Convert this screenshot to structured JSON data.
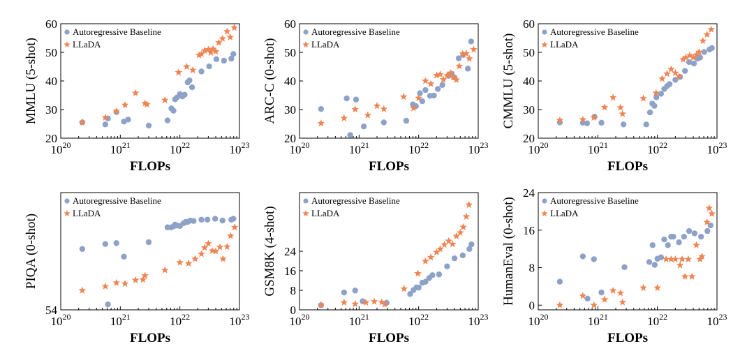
{
  "colors": {
    "baseline": "#8ea2c8",
    "llada": "#ef8552"
  },
  "chart_data": [
    {
      "type": "scatter",
      "xlabel": "FLOPs",
      "ylabel": "MMLU (5-shot)",
      "xscale": "log",
      "xlim": [
        1e+20,
        1e+23
      ],
      "ylim": [
        20,
        60
      ],
      "yticks": [
        20,
        30,
        40,
        50,
        60
      ],
      "xtick_exponents": [
        "20",
        "21",
        "22",
        "23"
      ],
      "legend": [
        "Autoregressive Baseline",
        "LLaDA"
      ],
      "series": [
        {
          "name": "Autoregressive Baseline",
          "marker": "circle",
          "x": [
            2.3e+20,
            5.6e+20,
            6.2e+20,
            8.6e+20,
            1.15e+21,
            1.35e+21,
            3e+21,
            6.2e+21,
            7.2e+21,
            7.8e+21,
            8.3e+21,
            8.9e+21,
            1e+22,
            1.1e+22,
            1.2e+22,
            1.35e+22,
            1.45e+22,
            1.6e+22,
            2.3e+22,
            3.1e+22,
            4.1e+22,
            5.5e+22,
            7.3e+22,
            7.9e+22
          ],
          "y": [
            25.5,
            24.8,
            26.9,
            29.1,
            25.8,
            26.5,
            24.4,
            26.2,
            30.4,
            29.6,
            33.6,
            34.2,
            35.4,
            34.6,
            35.2,
            39.5,
            40.2,
            37.8,
            43.3,
            45.1,
            47.6,
            47.1,
            47.8,
            49.4
          ]
        },
        {
          "name": "LLaDA",
          "marker": "star",
          "x": [
            2.3e+20,
            5.6e+20,
            8.6e+20,
            1.2e+21,
            1.8e+21,
            2.6e+21,
            2.8e+21,
            5.6e+21,
            9.5e+21,
            1.3e+22,
            1.65e+22,
            2.1e+22,
            2.3e+22,
            2.6e+22,
            3e+22,
            3.3e+22,
            3.6e+22,
            4e+22,
            4.5e+22,
            5.2e+22,
            6.2e+22,
            7e+22,
            8.2e+22
          ],
          "y": [
            25.6,
            27.2,
            29.5,
            31.6,
            35.8,
            32.2,
            31.8,
            33.3,
            43.0,
            45.0,
            43.8,
            49.0,
            49.4,
            50.6,
            51.0,
            49.9,
            51.2,
            50.3,
            53.4,
            54.8,
            57.3,
            55.3,
            58.6
          ]
        }
      ]
    },
    {
      "type": "scatter",
      "xlabel": "FLOPs",
      "ylabel": "ARC-C (0-shot)",
      "xscale": "log",
      "xlim": [
        1e+20,
        1e+23
      ],
      "ylim": [
        20,
        60
      ],
      "yticks": [
        20,
        30,
        40,
        50,
        60
      ],
      "xtick_exponents": [
        "20",
        "21",
        "22",
        "23"
      ],
      "legend": [
        "Autoregressive Baseline",
        "LLaDA"
      ],
      "series": [
        {
          "name": "Autoregressive Baseline",
          "marker": "circle",
          "x": [
            2.3e+20,
            6.2e+20,
            7.1e+20,
            8.9e+20,
            1.2e+21,
            2.6e+21,
            6.2e+21,
            8e+21,
            9e+21,
            1.05e+22,
            1.15e+22,
            1.3e+22,
            1.55e+22,
            1.8e+22,
            2.1e+22,
            2.5e+22,
            3.2e+22,
            3.6e+22,
            4e+22,
            4.7e+22,
            5.6e+22,
            6.7e+22,
            7.6e+22
          ],
          "y": [
            30.2,
            33.9,
            21.1,
            33.5,
            24.1,
            25.5,
            26.1,
            31.8,
            31.2,
            35.7,
            32.9,
            36.8,
            34.8,
            34.9,
            37.2,
            38.6,
            41.8,
            42.5,
            41.2,
            47.9,
            49.1,
            44.3,
            53.8
          ]
        },
        {
          "name": "LLaDA",
          "marker": "star",
          "x": [
            2.3e+20,
            5.6e+20,
            8.6e+20,
            1.4e+21,
            2e+21,
            2.6e+21,
            5.6e+21,
            8.2e+21,
            1e+22,
            1.3e+22,
            1.6e+22,
            2e+22,
            2.3e+22,
            2.6e+22,
            3e+22,
            3.4e+22,
            3.8e+22,
            4.3e+22,
            4.8e+22,
            5.5e+22,
            6.3e+22,
            7.1e+22,
            8.4e+22
          ],
          "y": [
            25.2,
            27.0,
            30.1,
            28.0,
            31.3,
            30.2,
            34.5,
            30.5,
            34.0,
            40.0,
            39.0,
            42.0,
            42.3,
            40.5,
            41.9,
            42.8,
            41.3,
            40.4,
            45.2,
            49.5,
            49.6,
            47.8,
            51.0
          ]
        }
      ]
    },
    {
      "type": "scatter",
      "xlabel": "FLOPs",
      "ylabel": "CMMLU (5-shot)",
      "xscale": "log",
      "xlim": [
        1e+20,
        1e+23
      ],
      "ylim": [
        20,
        60
      ],
      "yticks": [
        20,
        30,
        40,
        50,
        60
      ],
      "xtick_exponents": [
        "20",
        "21",
        "22",
        "23"
      ],
      "legend": [
        "Autoregressive Baseline",
        "LLaDA"
      ],
      "series": [
        {
          "name": "Autoregressive Baseline",
          "marker": "circle",
          "x": [
            2.3e+20,
            5.6e+20,
            6.6e+20,
            8.8e+20,
            1.15e+21,
            2.7e+21,
            6.5e+21,
            7.5e+21,
            8.2e+21,
            8.9e+21,
            9.6e+21,
            1.15e+22,
            1.3e+22,
            1.45e+22,
            1.6e+22,
            2e+22,
            2.4e+22,
            2.9e+22,
            3.4e+22,
            4.1e+22,
            4.7e+22,
            5.2e+22,
            6.1e+22,
            7.5e+22,
            8.2e+22
          ],
          "y": [
            25.5,
            25.4,
            25.2,
            27.5,
            25.4,
            24.8,
            24.8,
            29.0,
            32.1,
            31.3,
            34.3,
            35.5,
            37.2,
            38.2,
            38.9,
            40.4,
            41.4,
            43.5,
            46.6,
            46.1,
            47.8,
            48.2,
            50.1,
            51.0,
            51.5
          ]
        },
        {
          "name": "LLaDA",
          "marker": "star",
          "x": [
            2.3e+20,
            5.6e+20,
            8.6e+20,
            1.3e+21,
            1.8e+21,
            2.4e+21,
            2.6e+21,
            5.8e+21,
            9.5e+21,
            1.2e+22,
            1.45e+22,
            1.7e+22,
            2e+22,
            2.3e+22,
            2.7e+22,
            3e+22,
            3.5e+22,
            4e+22,
            4.5e+22,
            5e+22,
            5.8e+22,
            6.8e+22,
            8e+22
          ],
          "y": [
            26.3,
            26.5,
            27.2,
            30.8,
            34.2,
            30.7,
            28.5,
            33.9,
            35.8,
            40.8,
            42.5,
            44.1,
            42.8,
            41.6,
            47.5,
            48.2,
            48.9,
            48.2,
            49.1,
            50.1,
            54.0,
            56.2,
            58.0
          ]
        }
      ]
    },
    {
      "type": "scatter",
      "xlabel": "FLOPs",
      "ylabel": "PIQA (0-shot)",
      "xscale": "log",
      "xlim": [
        1e+20,
        1e+23
      ],
      "ylim": [
        54,
        80
      ],
      "yticks": [
        54
      ],
      "xtick_exponents": [
        "20",
        "21",
        "22",
        "23"
      ],
      "legend": [
        "Autoregressive Baseline",
        "LLaDA"
      ],
      "series": [
        {
          "name": "Autoregressive Baseline",
          "marker": "circle",
          "x": [
            2.3e+20,
            5.6e+20,
            6.2e+20,
            8.6e+20,
            1.15e+21,
            3e+21,
            6.2e+21,
            7.2e+21,
            7.8e+21,
            8.3e+21,
            8.9e+21,
            1e+22,
            1.15e+22,
            1.25e+22,
            1.35e+22,
            1.5e+22,
            1.7e+22,
            2.3e+22,
            2.9e+22,
            3.9e+22,
            5.2e+22,
            7.3e+22,
            7.9e+22
          ],
          "y": [
            67.5,
            68.6,
            55.2,
            68.8,
            65.8,
            69.0,
            72.3,
            72.3,
            72.5,
            72.9,
            72.7,
            72.6,
            73.2,
            73.5,
            73.5,
            73.8,
            73.7,
            74.0,
            74.0,
            74.2,
            73.8,
            74.0,
            74.2
          ]
        },
        {
          "name": "LLaDA",
          "marker": "star",
          "x": [
            2.3e+20,
            5.6e+20,
            8.6e+20,
            1.2e+21,
            1.8e+21,
            2.4e+21,
            2.6e+21,
            5.6e+21,
            1e+22,
            1.4e+22,
            1.8e+22,
            2.3e+22,
            2.6e+22,
            3e+22,
            3.5e+22,
            4e+22,
            4.7e+22,
            5.3e+22,
            6.2e+22,
            7.1e+22,
            8.3e+22
          ],
          "y": [
            58.3,
            59.2,
            60.0,
            59.8,
            60.6,
            60.7,
            61.6,
            62.8,
            64.5,
            64.3,
            65.3,
            66.4,
            67.8,
            68.7,
            67.1,
            67.0,
            67.9,
            65.3,
            68.0,
            70.4,
            72.3
          ]
        }
      ]
    },
    {
      "type": "scatter",
      "xlabel": "FLOPs",
      "ylabel": "GSM8K (4-shot)",
      "xscale": "log",
      "xlim": [
        1e+20,
        1e+23
      ],
      "ylim": [
        0,
        48
      ],
      "yticks": [
        0,
        8,
        16,
        24
      ],
      "xtick_exponents": [
        "20",
        "21",
        "22",
        "23"
      ],
      "legend": [
        "Autoregressive Baseline",
        "LLaDA"
      ],
      "series": [
        {
          "name": "Autoregressive Baseline",
          "marker": "circle",
          "x": [
            2.3e+20,
            5.6e+20,
            8.6e+20,
            1.15e+21,
            2.9e+21,
            7.2e+21,
            8.2e+21,
            9.2e+21,
            1e+22,
            1.15e+22,
            1.3e+22,
            1.5e+22,
            1.7e+22,
            2.2e+22,
            3e+22,
            4e+22,
            5.5e+22,
            7.1e+22,
            7.7e+22
          ],
          "y": [
            1.9,
            7.1,
            7.9,
            3.5,
            2.9,
            6.5,
            8.1,
            9.2,
            9.1,
            11.1,
            11.5,
            13.0,
            14.2,
            14.5,
            17.8,
            21.1,
            22.3,
            24.9,
            26.8
          ]
        },
        {
          "name": "LLaDA",
          "marker": "star",
          "x": [
            2.3e+20,
            5.6e+20,
            8.6e+20,
            1.3e+21,
            1.8e+21,
            2.4e+21,
            2.7e+21,
            5.7e+21,
            9.7e+21,
            1.3e+22,
            1.6e+22,
            2e+22,
            2.3e+22,
            2.7e+22,
            3.2e+22,
            3.7e+22,
            4.3e+22,
            5e+22,
            5.6e+22,
            6.3e+22,
            7e+22
          ],
          "y": [
            2.0,
            3.0,
            2.4,
            3.0,
            3.4,
            3.1,
            2.3,
            8.6,
            14.9,
            19.9,
            21.5,
            23.6,
            24.9,
            26.7,
            28.2,
            26.9,
            30.2,
            31.6,
            33.9,
            38.2,
            43.0
          ]
        }
      ]
    },
    {
      "type": "scatter",
      "xlabel": "FLOPs",
      "ylabel": "HumanEval (0-shot)",
      "xscale": "log",
      "xlim": [
        1e+20,
        1e+23
      ],
      "ylim": [
        -1,
        24
      ],
      "yticks": [
        0,
        8,
        16,
        24
      ],
      "xtick_exponents": [
        "20",
        "21",
        "22",
        "23"
      ],
      "legend": [
        "Autoregressive Baseline",
        "LLaDA"
      ],
      "series": [
        {
          "name": "Autoregressive Baseline",
          "marker": "circle",
          "x": [
            2.3e+20,
            5.6e+20,
            6.7e+20,
            8.6e+20,
            1.15e+21,
            2.8e+21,
            7.3e+21,
            8.3e+21,
            9e+21,
            1e+22,
            1.15e+22,
            1.3e+22,
            1.5e+22,
            1.7e+22,
            1.85e+22,
            2.3e+22,
            2.8e+22,
            3.4e+22,
            4.2e+22,
            5.4e+22,
            6.9e+22,
            7.8e+22
          ],
          "y": [
            5.0,
            10.4,
            1.4,
            9.8,
            2.7,
            8.1,
            9.2,
            12.8,
            8.6,
            9.9,
            10.2,
            14.0,
            12.8,
            14.6,
            14.6,
            13.4,
            14.6,
            15.8,
            15.3,
            14.6,
            15.8,
            17.0
          ]
        },
        {
          "name": "LLaDA",
          "marker": "star",
          "x": [
            2.3e+20,
            5.6e+20,
            8.6e+20,
            1.3e+21,
            1.8e+21,
            2.4e+21,
            2.6e+21,
            5.8e+21,
            1e+22,
            1.4e+22,
            1.7e+22,
            2e+22,
            2.4e+22,
            2.6e+22,
            2.9e+22,
            3.3e+22,
            3.8e+22,
            4.5e+22,
            5.2e+22,
            5.6e+22,
            6.8e+22,
            7.4e+22,
            8.2e+22
          ],
          "y": [
            0.0,
            2.0,
            0.0,
            1.2,
            3.1,
            2.6,
            0.6,
            3.7,
            3.7,
            9.8,
            9.8,
            9.8,
            8.5,
            9.8,
            6.1,
            9.8,
            6.1,
            12.8,
            9.8,
            10.4,
            17.7,
            20.7,
            19.5
          ]
        }
      ]
    }
  ]
}
